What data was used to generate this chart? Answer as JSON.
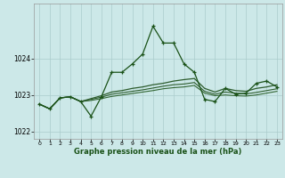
{
  "title": "Graphe pression niveau de la mer (hPa)",
  "background_color": "#cce8e8",
  "grid_color": "#aacccc",
  "line_color_dark": "#1a5218",
  "xlim": [
    -0.5,
    23.5
  ],
  "ylim": [
    1021.8,
    1025.5
  ],
  "xticks": [
    0,
    1,
    2,
    3,
    4,
    5,
    6,
    7,
    8,
    9,
    10,
    11,
    12,
    13,
    14,
    15,
    16,
    17,
    18,
    19,
    20,
    21,
    22,
    23
  ],
  "yticks": [
    1022,
    1023,
    1024
  ],
  "series1_x": [
    0,
    1,
    2,
    3,
    4,
    5,
    6,
    7,
    8,
    9,
    10,
    11,
    12,
    13,
    14,
    15,
    16,
    17,
    18,
    19,
    20,
    21,
    22,
    23
  ],
  "series1_y": [
    1022.75,
    1022.62,
    1022.92,
    1022.95,
    1022.82,
    1022.42,
    1022.95,
    1023.62,
    1023.62,
    1023.85,
    1024.12,
    1024.88,
    1024.42,
    1024.42,
    1023.85,
    1023.62,
    1022.88,
    1022.82,
    1023.18,
    1023.02,
    1023.05,
    1023.32,
    1023.38,
    1023.22
  ],
  "series2_x": [
    0,
    1,
    2,
    3,
    4,
    5,
    6,
    7,
    8,
    9,
    10,
    11,
    12,
    13,
    14,
    15,
    16,
    17,
    18,
    19,
    20,
    21,
    22,
    23
  ],
  "series2_y": [
    1022.75,
    1022.62,
    1022.92,
    1022.95,
    1022.82,
    1022.9,
    1022.98,
    1023.08,
    1023.12,
    1023.18,
    1023.22,
    1023.28,
    1023.32,
    1023.38,
    1023.42,
    1023.45,
    1023.18,
    1023.08,
    1023.18,
    1023.12,
    1023.1,
    1023.18,
    1023.22,
    1023.28
  ],
  "series3_x": [
    0,
    1,
    2,
    3,
    4,
    5,
    6,
    7,
    8,
    9,
    10,
    11,
    12,
    13,
    14,
    15,
    16,
    17,
    18,
    19,
    20,
    21,
    22,
    23
  ],
  "series3_y": [
    1022.75,
    1022.62,
    1022.92,
    1022.95,
    1022.82,
    1022.88,
    1022.94,
    1023.02,
    1023.06,
    1023.1,
    1023.14,
    1023.19,
    1023.24,
    1023.28,
    1023.3,
    1023.34,
    1023.1,
    1023.02,
    1023.08,
    1023.05,
    1023.03,
    1023.07,
    1023.12,
    1023.17
  ],
  "series4_x": [
    0,
    1,
    2,
    3,
    4,
    5,
    6,
    7,
    8,
    9,
    10,
    11,
    12,
    13,
    14,
    15,
    16,
    17,
    18,
    19,
    20,
    21,
    22,
    23
  ],
  "series4_y": [
    1022.75,
    1022.62,
    1022.92,
    1022.95,
    1022.82,
    1022.85,
    1022.9,
    1022.96,
    1023.0,
    1023.04,
    1023.08,
    1023.12,
    1023.17,
    1023.2,
    1023.22,
    1023.26,
    1023.05,
    1022.98,
    1023.0,
    1022.98,
    1022.97,
    1023.0,
    1023.05,
    1023.1
  ]
}
